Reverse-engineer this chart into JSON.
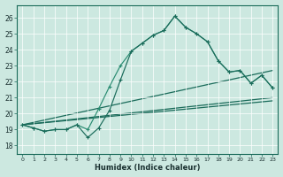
{
  "xlabel": "Humidex (Indice chaleur)",
  "xlim": [
    -0.5,
    23.5
  ],
  "ylim": [
    17.5,
    26.8
  ],
  "yticks": [
    18,
    19,
    20,
    21,
    22,
    23,
    24,
    25,
    26
  ],
  "xticks": [
    0,
    1,
    2,
    3,
    4,
    5,
    6,
    7,
    8,
    9,
    10,
    11,
    12,
    13,
    14,
    15,
    16,
    17,
    18,
    19,
    20,
    21,
    22,
    23
  ],
  "bg_color": "#cce8e0",
  "line_color_dark": "#1a6b5a",
  "line_color_mid": "#2a8c72",
  "series_main": [
    19.3,
    19.1,
    18.9,
    19.0,
    19.0,
    19.3,
    18.5,
    19.1,
    20.2,
    22.1,
    23.9,
    24.4,
    24.9,
    25.2,
    26.1,
    25.4,
    25.0,
    24.5,
    23.3,
    22.6,
    22.7,
    21.9,
    22.4,
    21.6
  ],
  "series_alt": [
    19.3,
    19.1,
    18.9,
    19.0,
    19.0,
    19.3,
    19.0,
    20.3,
    21.7,
    23.0,
    23.9,
    24.4,
    24.9,
    25.2,
    26.1,
    25.4,
    25.0,
    24.5,
    23.3,
    22.6,
    22.7,
    21.9,
    22.4,
    21.6
  ],
  "line1_x": [
    0,
    23
  ],
  "line1_y": [
    19.3,
    22.7
  ],
  "line2_x": [
    0,
    23
  ],
  "line2_y": [
    19.3,
    21.0
  ],
  "line3_x": [
    0,
    23
  ],
  "line3_y": [
    19.3,
    20.8
  ]
}
